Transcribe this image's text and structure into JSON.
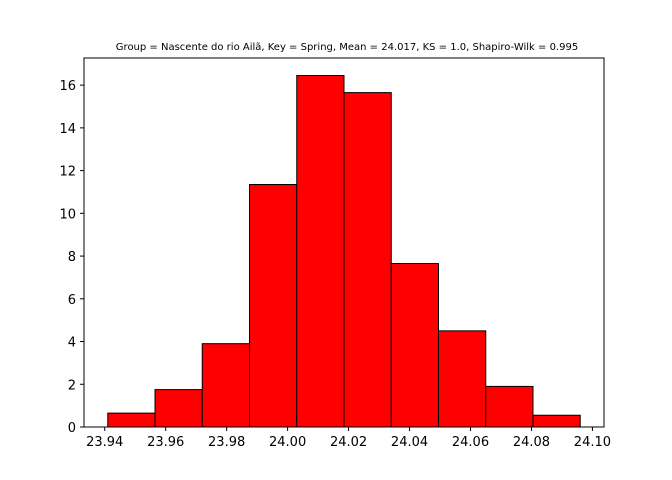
{
  "chart_data": {
    "type": "bar",
    "title": "Group = Nascente do rio Ailã, Key = Spring, Mean = 24.017, KS = 1.0, Shapiro-Wilk = 0.995",
    "xlabel": "",
    "ylabel": "",
    "bar_color": "#ff0000",
    "edge_color": "#000000",
    "bins": [
      {
        "start": 23.941,
        "end": 23.9565,
        "value": 0.65
      },
      {
        "start": 23.9565,
        "end": 23.972,
        "value": 1.75
      },
      {
        "start": 23.972,
        "end": 23.9875,
        "value": 3.9
      },
      {
        "start": 23.9875,
        "end": 24.003,
        "value": 11.35
      },
      {
        "start": 24.003,
        "end": 24.0185,
        "value": 16.45
      },
      {
        "start": 24.0185,
        "end": 24.034,
        "value": 15.65
      },
      {
        "start": 24.034,
        "end": 24.0495,
        "value": 7.65
      },
      {
        "start": 24.0495,
        "end": 24.065,
        "value": 4.5
      },
      {
        "start": 24.065,
        "end": 24.0805,
        "value": 1.9
      },
      {
        "start": 24.0805,
        "end": 24.096,
        "value": 0.55
      }
    ],
    "xlim": [
      23.9332,
      24.1038
    ],
    "ylim": [
      0,
      17.27
    ],
    "x_ticks": [
      23.94,
      23.96,
      23.98,
      24.0,
      24.02,
      24.04,
      24.06,
      24.08,
      24.1
    ],
    "x_tick_labels": [
      "23.94",
      "23.96",
      "23.98",
      "24.00",
      "24.02",
      "24.04",
      "24.06",
      "24.08",
      "24.10"
    ],
    "y_ticks": [
      0,
      2,
      4,
      6,
      8,
      10,
      12,
      14,
      16
    ],
    "y_tick_labels": [
      "0",
      "2",
      "4",
      "6",
      "8",
      "10",
      "12",
      "14",
      "16"
    ],
    "grid": false,
    "legend": "none"
  }
}
